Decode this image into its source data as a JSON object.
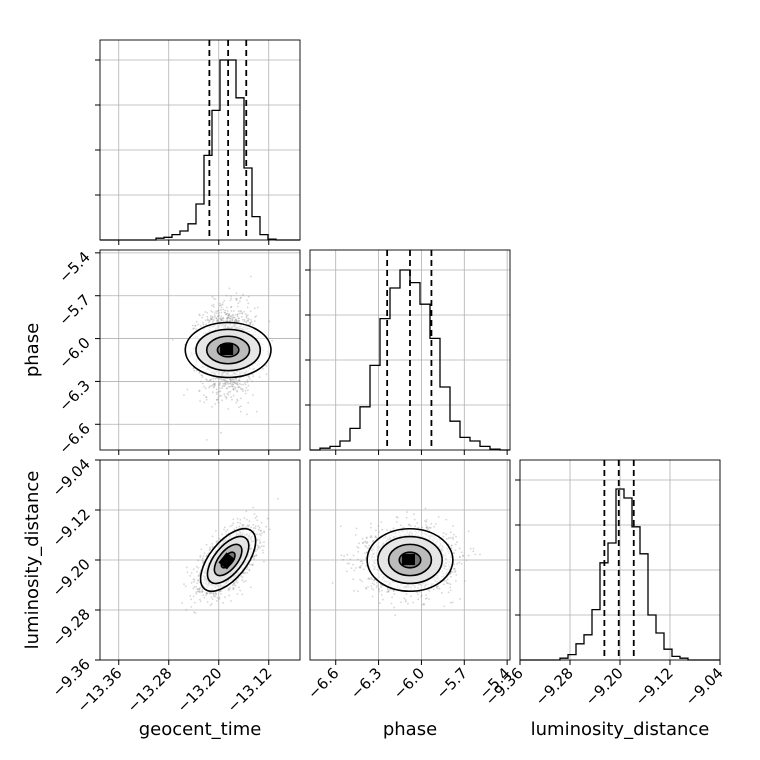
{
  "chart_data": {
    "type": "corner",
    "grid": true,
    "parameters": [
      {
        "name": "geocent_time",
        "range": [
          -13.39,
          -13.07
        ],
        "ticks": [
          -13.36,
          -13.28,
          -13.2,
          -13.12
        ],
        "tick_labels": [
          "−13.36",
          "−13.28",
          "−13.20",
          "−13.12"
        ],
        "quantiles": [
          -13.215,
          -13.185,
          -13.156
        ],
        "mean": -13.185,
        "sd": 0.022,
        "histogram": [
          0.0,
          0.0,
          0.0,
          0.0,
          0.0,
          0.0,
          0.0,
          0.01,
          0.015,
          0.03,
          0.05,
          0.09,
          0.2,
          0.47,
          0.72,
          1.0,
          1.0,
          0.79,
          0.4,
          0.13,
          0.03,
          0.005,
          0.0,
          0.0,
          0.0
        ]
      },
      {
        "name": "phase",
        "range": [
          -6.78,
          -5.38
        ],
        "ticks": [
          -6.6,
          -6.3,
          -6.0,
          -5.7,
          -5.4
        ],
        "tick_labels": [
          "−6.6",
          "−6.3",
          "−6.0",
          "−5.7",
          "−5.4"
        ],
        "quantiles": [
          -6.24,
          -6.08,
          -5.93
        ],
        "mean": -6.08,
        "sd": 0.15,
        "histogram": [
          0.0,
          0.01,
          0.02,
          0.05,
          0.12,
          0.24,
          0.47,
          0.73,
          0.9,
          1.0,
          0.93,
          0.81,
          0.62,
          0.35,
          0.16,
          0.07,
          0.05,
          0.02,
          0.005,
          0.0
        ]
      },
      {
        "name": "luminosity_distance",
        "range": [
          -9.36,
          -9.04
        ],
        "ticks": [
          -9.36,
          -9.28,
          -9.2,
          -9.12,
          -9.04
        ],
        "tick_labels": [
          "−9.36",
          "−9.28",
          "−9.20",
          "−9.12",
          "−9.04"
        ],
        "quantiles": [
          -9.225,
          -9.202,
          -9.178
        ],
        "mean": -9.2,
        "sd": 0.025,
        "histogram": [
          0.0,
          0.0,
          0.0,
          0.0,
          0.0,
          0.01,
          0.03,
          0.09,
          0.14,
          0.28,
          0.54,
          0.65,
          0.95,
          0.9,
          0.74,
          0.59,
          0.25,
          0.15,
          0.06,
          0.02,
          0.01,
          0.0,
          0.0,
          0.0,
          0.0
        ]
      }
    ],
    "correlations": {
      "geocent_time|phase": 0.0,
      "geocent_time|luminosity_distance": 0.6,
      "phase|luminosity_distance": 0.0
    },
    "contour_levels_sigma": [
      0.5,
      1.0,
      1.5,
      2.0
    ]
  }
}
